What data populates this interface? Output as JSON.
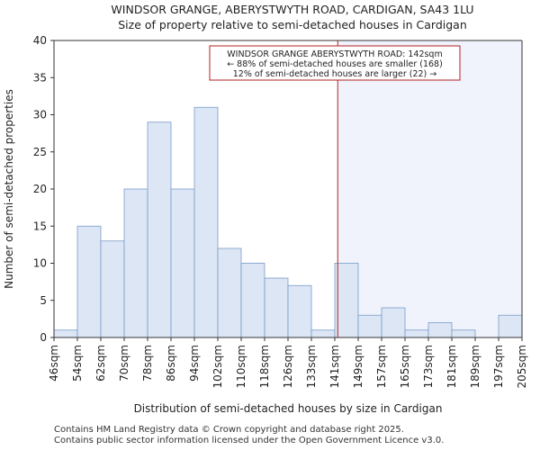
{
  "chart_data": {
    "type": "bar",
    "title": "WINDSOR GRANGE, ABERYSTWYTH ROAD, CARDIGAN, SA43 1LU",
    "subtitle": "Size of property relative to semi-detached houses in Cardigan",
    "xlabel": "Distribution of semi-detached houses by size in Cardigan",
    "ylabel": "Number of semi-detached properties",
    "ylim": [
      0,
      40
    ],
    "yticks": [
      0,
      5,
      10,
      15,
      20,
      25,
      30,
      35,
      40
    ],
    "bin_edges": [
      46,
      54,
      62,
      70,
      78,
      86,
      94,
      102,
      110,
      118,
      126,
      133,
      141,
      149,
      157,
      165,
      173,
      181,
      189,
      197,
      205
    ],
    "tick_labels": [
      "46sqm",
      "54sqm",
      "62sqm",
      "70sqm",
      "78sqm",
      "86sqm",
      "94sqm",
      "102sqm",
      "110sqm",
      "118sqm",
      "126sqm",
      "133sqm",
      "141sqm",
      "149sqm",
      "157sqm",
      "165sqm",
      "173sqm",
      "181sqm",
      "189sqm",
      "197sqm",
      "205sqm"
    ],
    "values": [
      1,
      15,
      13,
      20,
      29,
      20,
      31,
      12,
      10,
      8,
      7,
      1,
      10,
      3,
      4,
      1,
      2,
      1,
      0,
      3
    ],
    "marker": {
      "value": 142,
      "label": "WINDSOR GRANGE ABERYSTWYTH ROAD: 142sqm"
    },
    "annotation": [
      "WINDSOR GRANGE ABERYSTWYTH ROAD: 142sqm",
      "← 88% of semi-detached houses are smaller (168)",
      "12% of semi-detached houses are larger (22) →"
    ],
    "colors": {
      "bar_fill": "#dce6f5",
      "bar_stroke": "#7a9cc8",
      "marker": "#b22222",
      "shade": "#f0f3fc"
    }
  },
  "footer": {
    "line1": "Contains HM Land Registry data © Crown copyright and database right 2025.",
    "line2": "Contains public sector information licensed under the Open Government Licence v3.0."
  }
}
